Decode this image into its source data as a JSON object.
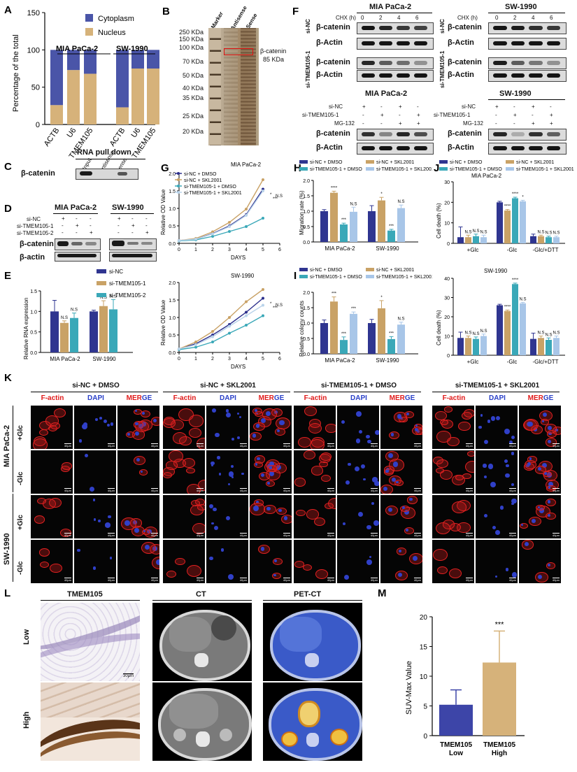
{
  "panels": {
    "A": "A",
    "B": "B",
    "C": "C",
    "D": "D",
    "E": "E",
    "F": "F",
    "G": "G",
    "H": "H",
    "I": "I",
    "J": "J",
    "K": "K",
    "L": "L",
    "M": "M"
  },
  "panelA": {
    "ylabel": "Percentage of the total",
    "legend": [
      "Cytoplasm",
      "Nucleus"
    ],
    "groups": [
      "MIA PaCa-2",
      "SW-1990"
    ],
    "categories": [
      "ACTB",
      "U6",
      "TMEM105",
      "ACTB",
      "U6",
      "TMEM105"
    ],
    "yticks": [
      "0",
      "50",
      "100",
      "150"
    ]
  },
  "panelB": {
    "lanes": [
      "Marker",
      "Antisense",
      "Sense"
    ],
    "markers": [
      "250 KDa",
      "150 KDa",
      "100 KDa",
      "70 KDa",
      "50 KDa",
      "40 KDa",
      "35 KDa",
      "25 KDa",
      "20 KDa"
    ],
    "annotation": "β-catenin",
    "annotation2": "85 KDa"
  },
  "panelC": {
    "title": "RNA pull down",
    "lanes": [
      "Input",
      "Antisense",
      "Sense"
    ],
    "row": "β-catenin"
  },
  "panelD": {
    "cells": [
      "MIA PaCa-2",
      "SW-1990"
    ],
    "rows": [
      "si-NC",
      "si-TMEM105-1",
      "si-TMEM105-2"
    ],
    "blots": [
      "β-catenin",
      "β-actin"
    ]
  },
  "panelE": {
    "ylabel": "Relative RNA expression",
    "legend": [
      "si-NC",
      "si-TMEM105-1",
      "si-TMEM105-2"
    ],
    "groups": [
      "MIA PaCa-2",
      "SW-1990"
    ],
    "ns": "N.S",
    "yticks": [
      "0.0",
      "0.5",
      "1.0",
      "1.5"
    ]
  },
  "panelF": {
    "mia": "MIA PaCa-2",
    "sw": "SW-1990",
    "chx": "CHX (h)",
    "times": [
      "0",
      "2",
      "4",
      "6"
    ],
    "siNC": "si-NC",
    "siT": "si-TMEM105-1",
    "bcat": "β-catenin",
    "bact": "β-Actin",
    "mgrows": [
      "si-NC",
      "si-TMEM105-1",
      "MG-132"
    ],
    "plus": "+",
    "minus": "-"
  },
  "panelG": {
    "title1": "MIA PaCa-2",
    "title2": "SW-1990",
    "ylabel": "Relative OD Value",
    "xlabel": "DAYS",
    "legend": [
      "si-NC + DMSO",
      "si-NC + SKL2001",
      "si-TMEM105-1 + DMSO",
      "si-TMEM105-1 + SKL2001"
    ],
    "xticks": [
      "0",
      "1",
      "2",
      "3",
      "4",
      "5",
      "6"
    ],
    "yticks": [
      "0.0",
      "0.5",
      "1.0",
      "1.5",
      "2.0"
    ],
    "colors": [
      "#2b2f8c",
      "#c9a266",
      "#3aa8b8",
      "#b9d3ea"
    ]
  },
  "panelH": {
    "ylabel": "Migration rate (%)",
    "legend": [
      "si-NC + DMSO",
      "si-NC + SKL2001",
      "si-TMEM105-1 + DMSO",
      "si-TMEM105-1 + SKL2001"
    ],
    "groups": [
      "MIA PaCa-2",
      "SW-1990"
    ],
    "yticks": [
      "0.0",
      "0.5",
      "1.0",
      "1.5",
      "2.0"
    ]
  },
  "panelI": {
    "ylabel": "Relative colony counts",
    "groups": [
      "MIA PaCa-2",
      "SW-1990"
    ],
    "yticks": [
      "0.0",
      "0.5",
      "1.0",
      "1.5",
      "2.0"
    ]
  },
  "panelJ": {
    "legend": [
      "si-NC + DMSO",
      "si-NC + SKL2001",
      "si-TMEM105-1 + DMSO",
      "si-TMEM105-1 + SKL2001"
    ],
    "title1": "MIA PaCa-2",
    "title2": "SW-1990",
    "ylabel": "Cell death (%)",
    "groups": [
      "+Glc",
      "-Glc",
      "-Glc/+DTT"
    ],
    "yticks1": [
      "0",
      "10",
      "20",
      "30"
    ],
    "yticks2": [
      "0",
      "10",
      "20",
      "30",
      "40"
    ]
  },
  "panelK": {
    "headers": [
      "si-NC + DMSO",
      "si-NC + SKL2001",
      "si-TMEM105-1 + DMSO",
      "si-TMEM105-1 + SKL2001"
    ],
    "channels": [
      "F-actin",
      "DAPI",
      "MERGE"
    ],
    "cells": [
      "MIA PaCa-2",
      "SW-1990"
    ],
    "conds": [
      "+Glc",
      "-Glc"
    ],
    "scale": "40μm"
  },
  "panelL": {
    "cols": [
      "TMEM105",
      "CT",
      "PET-CT"
    ],
    "rows": [
      "Low",
      "High"
    ],
    "scale": "30μm"
  },
  "panelM": {
    "ylabel": "SUV-Max Value",
    "sig": "***",
    "cats": [
      "TMEM105\nLow",
      "TMEM105\nHigh"
    ],
    "cat1a": "TMEM105",
    "cat1b": "Low",
    "cat2a": "TMEM105",
    "cat2b": "High",
    "yticks": [
      "0",
      "5",
      "10",
      "15",
      "20"
    ]
  },
  "chart_data": [
    {
      "type": "bar",
      "name": "A",
      "categories": [
        "ACTB",
        "U6",
        "TMEM105",
        "ACTB",
        "U6",
        "TMEM105"
      ],
      "series": [
        {
          "name": "Nucleus",
          "values": [
            26,
            73,
            68,
            23,
            75,
            75
          ]
        },
        {
          "name": "Cytoplasm",
          "values": [
            74,
            27,
            32,
            77,
            25,
            25
          ]
        }
      ],
      "ylabel": "Percentage of the total",
      "ylim": [
        0,
        150
      ]
    },
    {
      "type": "bar",
      "name": "E",
      "categories": [
        "MIA PaCa-2",
        "SW-1990"
      ],
      "series": [
        {
          "name": "si-NC",
          "values": [
            1.0,
            1.0
          ]
        },
        {
          "name": "si-TMEM105-1",
          "values": [
            0.72,
            1.13
          ]
        },
        {
          "name": "si-TMEM105-2",
          "values": [
            0.84,
            1.05
          ]
        }
      ],
      "ylim": [
        0,
        1.5
      ]
    },
    {
      "type": "line",
      "name": "G-MIA",
      "x": [
        0,
        1,
        2,
        3,
        4,
        5
      ],
      "series": [
        {
          "name": "si-NC + DMSO",
          "values": [
            0.08,
            0.12,
            0.28,
            0.5,
            0.82,
            1.55
          ]
        },
        {
          "name": "si-NC + SKL2001",
          "values": [
            0.08,
            0.14,
            0.33,
            0.6,
            0.98,
            1.82
          ]
        },
        {
          "name": "si-TMEM105-1 + DMSO",
          "values": [
            0.07,
            0.1,
            0.2,
            0.34,
            0.48,
            0.72
          ]
        },
        {
          "name": "si-TMEM105-1 + SKL2001",
          "values": [
            0.08,
            0.12,
            0.27,
            0.48,
            0.8,
            1.5
          ]
        }
      ],
      "xlim": [
        0,
        6
      ],
      "ylim": [
        0,
        2.0
      ]
    },
    {
      "type": "line",
      "name": "G-SW",
      "x": [
        0,
        1,
        2,
        3,
        4,
        5
      ],
      "series": [
        {
          "name": "si-NC + DMSO",
          "values": [
            0.1,
            0.25,
            0.5,
            0.8,
            1.15,
            1.55
          ]
        },
        {
          "name": "si-NC + SKL2001",
          "values": [
            0.1,
            0.3,
            0.6,
            1.0,
            1.45,
            1.8
          ]
        },
        {
          "name": "si-TMEM105-1 + DMSO",
          "values": [
            0.08,
            0.15,
            0.3,
            0.55,
            0.78,
            1.05
          ]
        },
        {
          "name": "si-TMEM105-1 + SKL2001",
          "values": [
            0.1,
            0.22,
            0.45,
            0.75,
            1.05,
            1.35
          ]
        }
      ],
      "xlim": [
        0,
        6
      ],
      "ylim": [
        0,
        2.0
      ]
    },
    {
      "type": "bar",
      "name": "H",
      "categories": [
        "MIA PaCa-2",
        "SW-1990"
      ],
      "series": [
        {
          "name": "si-NC + DMSO",
          "values": [
            1.0,
            1.0
          ]
        },
        {
          "name": "si-NC + SKL2001",
          "values": [
            1.6,
            1.35
          ]
        },
        {
          "name": "si-TMEM105-1 + DMSO",
          "values": [
            0.57,
            0.37
          ]
        },
        {
          "name": "si-TMEM105-1 + SKL2001",
          "values": [
            0.98,
            1.1
          ]
        }
      ],
      "ylim": [
        0,
        2.0
      ]
    },
    {
      "type": "bar",
      "name": "I",
      "categories": [
        "MIA PaCa-2",
        "SW-1990"
      ],
      "series": [
        {
          "name": "si-NC + DMSO",
          "values": [
            1.0,
            1.0
          ]
        },
        {
          "name": "si-NC + SKL2001",
          "values": [
            1.7,
            1.48
          ]
        },
        {
          "name": "si-TMEM105-1 + DMSO",
          "values": [
            0.45,
            0.48
          ]
        },
        {
          "name": "si-TMEM105-1 + SKL2001",
          "values": [
            1.3,
            0.95
          ]
        }
      ],
      "ylim": [
        0,
        2.0
      ]
    },
    {
      "type": "bar",
      "name": "J-MIA",
      "categories": [
        "+Glc",
        "-Glc",
        "-Glc/+DTT"
      ],
      "series": [
        {
          "name": "si-NC + DMSO",
          "values": [
            3,
            20,
            3.5
          ]
        },
        {
          "name": "si-NC + SKL2001",
          "values": [
            3,
            16,
            3.5
          ]
        },
        {
          "name": "si-TMEM105-1 + DMSO",
          "values": [
            3.5,
            22,
            3
          ]
        },
        {
          "name": "si-TMEM105-1 + SKL2001",
          "values": [
            3,
            20.5,
            3
          ]
        }
      ],
      "ylim": [
        0,
        30
      ]
    },
    {
      "type": "bar",
      "name": "J-SW",
      "categories": [
        "+Glc",
        "-Glc",
        "-Glc/+DTT"
      ],
      "series": [
        {
          "name": "si-NC + DMSO",
          "values": [
            9,
            26,
            8.5
          ]
        },
        {
          "name": "si-NC + SKL2001",
          "values": [
            9,
            23,
            9
          ]
        },
        {
          "name": "si-TMEM105-1 + DMSO",
          "values": [
            8.5,
            37,
            8
          ]
        },
        {
          "name": "si-TMEM105-1 + SKL2001",
          "values": [
            10,
            27,
            9
          ]
        }
      ],
      "ylim": [
        0,
        40
      ]
    },
    {
      "type": "bar",
      "name": "M",
      "categories": [
        "TMEM105 Low",
        "TMEM105 High"
      ],
      "values": [
        5.2,
        12.3
      ],
      "errors": [
        2.5,
        5.3
      ],
      "ylabel": "SUV-Max Value",
      "ylim": [
        0,
        20
      ]
    }
  ]
}
